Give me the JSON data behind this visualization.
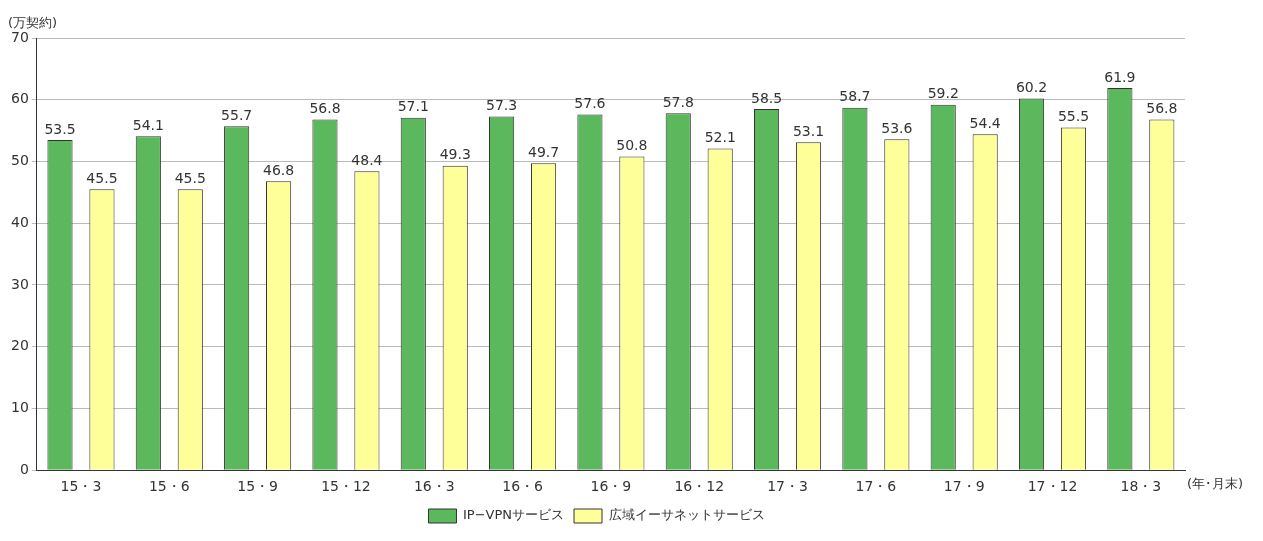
{
  "chart_data": {
    "type": "bar",
    "ylabel": "(万契約)",
    "xlabel": "(年･月末)",
    "categories": [
      "15・3",
      "15・6",
      "15・9",
      "15・12",
      "16・3",
      "16・6",
      "16・9",
      "16・12",
      "17・3",
      "17・6",
      "17・9",
      "17・12",
      "18・3"
    ],
    "series": [
      {
        "name": "IP−VPNサービス",
        "color": "#5cb85c",
        "values": [
          53.5,
          54.1,
          55.7,
          56.8,
          57.1,
          57.3,
          57.6,
          57.8,
          58.5,
          58.7,
          59.2,
          60.2,
          61.9
        ]
      },
      {
        "name": "広域イーサネットサービス",
        "color": "#ffff99",
        "values": [
          45.5,
          45.5,
          46.8,
          48.4,
          49.3,
          49.7,
          50.8,
          52.1,
          53.1,
          53.6,
          54.4,
          55.5,
          56.8
        ]
      }
    ],
    "ylim": [
      0,
      70
    ],
    "yticks": [
      0,
      10,
      20,
      30,
      40,
      50,
      60,
      70
    ],
    "grid": "y",
    "legend": "bottom",
    "data_labels": true
  }
}
